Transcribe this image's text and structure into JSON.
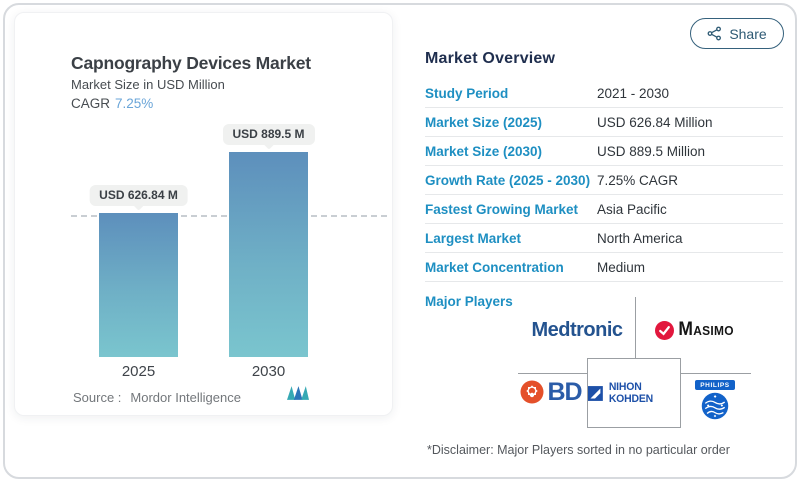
{
  "share": {
    "label": "Share",
    "color": "#2e5a74"
  },
  "chart_card": {
    "title": "Capnography Devices Market",
    "subtitle": "Market Size in USD Million",
    "cagr_label": "CAGR",
    "cagr_value": "7.25%",
    "source_label": "Source :",
    "source_value": "Mordor Intelligence",
    "colors": {
      "bar_top": "#5d8fbc",
      "bar_bottom": "#7ac5ce",
      "cagr_accent": "#6aa5d8",
      "dashed_line": "#c9ced3"
    }
  },
  "chart_data": {
    "type": "bar",
    "title": "Capnography Devices Market",
    "ylabel": "Market Size in USD Million",
    "categories": [
      "2025",
      "2030"
    ],
    "values": [
      626.84,
      889.5
    ],
    "value_labels": [
      "USD 626.84 M",
      "USD 889.5 M"
    ],
    "cagr": "7.25%",
    "reference_line_value": 626.84,
    "grid": false,
    "legend": false
  },
  "overview": {
    "title": "Market Overview",
    "rows": [
      {
        "label": "Study Period",
        "value": "2021 - 2030"
      },
      {
        "label": "Market Size (2025)",
        "value": "USD 626.84 Million"
      },
      {
        "label": "Market Size (2030)",
        "value": "USD 889.5 Million"
      },
      {
        "label": "Growth Rate (2025 - 2030)",
        "value": "7.25% CAGR"
      },
      {
        "label": "Fastest Growing Market",
        "value": "Asia Pacific"
      },
      {
        "label": "Largest Market",
        "value": "North America"
      },
      {
        "label": "Market Concentration",
        "value": "Medium"
      }
    ],
    "major_players_label": "Major Players",
    "players": [
      {
        "name": "Medtronic",
        "color": "#24538f"
      },
      {
        "name": "Masimo",
        "color": "#161616",
        "icon_color": "#e2173d"
      },
      {
        "name": "BD",
        "color": "#2b5ca8",
        "icon_color": "#e4502a"
      },
      {
        "name": "Nihon Kohden",
        "color": "#1d50a8"
      },
      {
        "name": "Philips",
        "color": "#1262c9"
      }
    ],
    "disclaimer": "*Disclaimer: Major Players sorted in no particular order",
    "label_color": "#1e8fc2"
  }
}
